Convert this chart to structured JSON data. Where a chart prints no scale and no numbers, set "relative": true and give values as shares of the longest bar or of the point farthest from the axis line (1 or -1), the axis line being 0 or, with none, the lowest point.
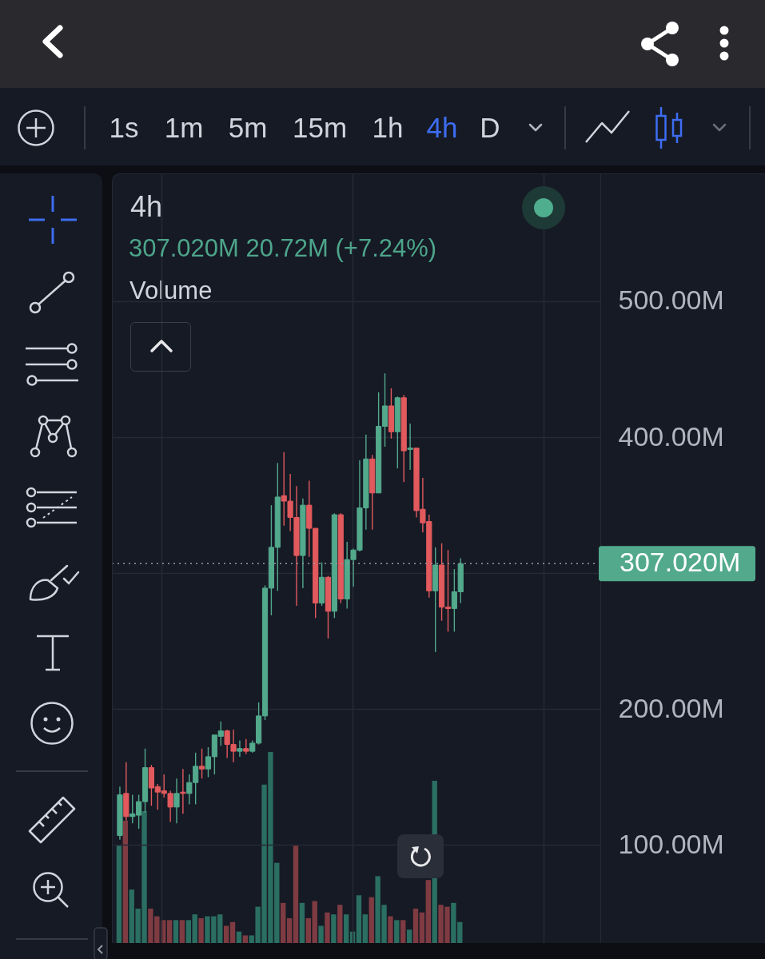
{
  "chart_data": [
    {
      "type": "candlestick",
      "title": "4h",
      "subtitle": "307.020M 20.72M (+7.24%)",
      "categories": [
        null,
        null,
        null,
        null,
        null,
        null,
        null,
        null,
        null,
        null,
        null,
        null,
        null,
        null,
        null,
        null,
        null,
        null,
        null,
        null,
        null,
        null,
        null,
        null,
        null,
        null,
        null,
        null,
        null,
        null,
        null,
        null,
        null,
        null,
        null,
        null,
        null,
        null,
        null,
        null,
        null,
        null,
        null,
        null,
        null,
        null,
        null,
        null,
        null,
        null,
        null,
        null,
        null,
        null,
        null,
        null,
        null,
        null,
        null,
        null,
        null,
        null,
        null,
        null,
        null,
        null,
        null,
        null,
        null,
        null,
        null,
        null,
        null,
        null,
        null,
        null
      ],
      "ohlc": [
        [
          107,
          143,
          104,
          137
        ],
        [
          138,
          161,
          118,
          121
        ],
        [
          121,
          137,
          116,
          123
        ],
        [
          122,
          137,
          112,
          132
        ],
        [
          132,
          171,
          124,
          157
        ],
        [
          157,
          159,
          129,
          142
        ],
        [
          143,
          145,
          126,
          139
        ],
        [
          140,
          152,
          135,
          138
        ],
        [
          138,
          140,
          117,
          128
        ],
        [
          128,
          149,
          116,
          138
        ],
        [
          139,
          156,
          123,
          138
        ],
        [
          138,
          152,
          130,
          146
        ],
        [
          146,
          168,
          130,
          158
        ],
        [
          158,
          171,
          149,
          156
        ],
        [
          156,
          172,
          150,
          165
        ],
        [
          165,
          181,
          152,
          181
        ],
        [
          180,
          191,
          173,
          184
        ],
        [
          184,
          185,
          164,
          174
        ],
        [
          174,
          185,
          161,
          169
        ],
        [
          169,
          177,
          165,
          171
        ],
        [
          171,
          178,
          167,
          169
        ],
        [
          169,
          177,
          168,
          175
        ],
        [
          175,
          205,
          174,
          195
        ],
        [
          195,
          291,
          192,
          289
        ],
        [
          289,
          350,
          269,
          319
        ],
        [
          319,
          381,
          287,
          356
        ],
        [
          357,
          389,
          335,
          353
        ],
        [
          353,
          373,
          331,
          341
        ],
        [
          341,
          364,
          276,
          313
        ],
        [
          313,
          355,
          289,
          350
        ],
        [
          350,
          368,
          312,
          333
        ],
        [
          333,
          333,
          267,
          278
        ],
        [
          278,
          308,
          276,
          297
        ],
        [
          297,
          298,
          252,
          272
        ],
        [
          272,
          344,
          267,
          343
        ],
        [
          343,
          344,
          278,
          281
        ],
        [
          281,
          323,
          274,
          310
        ],
        [
          310,
          318,
          290,
          317
        ],
        [
          317,
          383,
          316,
          348
        ],
        [
          348,
          402,
          332,
          384
        ],
        [
          384,
          387,
          332,
          359
        ],
        [
          359,
          433,
          359,
          408
        ],
        [
          408,
          447,
          393,
          423
        ],
        [
          423,
          436,
          399,
          404
        ],
        [
          404,
          430,
          377,
          429
        ],
        [
          429,
          431,
          367,
          390
        ],
        [
          391,
          410,
          376,
          392
        ],
        [
          392,
          392,
          341,
          346
        ],
        [
          347,
          370,
          330,
          337
        ],
        [
          338,
          343,
          282,
          287
        ],
        [
          287,
          319,
          242,
          306
        ],
        [
          306,
          322,
          265,
          275
        ],
        [
          275,
          317,
          257,
          274
        ],
        [
          274,
          303,
          257,
          286.3
        ],
        [
          286.3,
          311,
          278,
          307.02
        ],
        null,
        null,
        null,
        null,
        null,
        null,
        null,
        null,
        null,
        null,
        null,
        null,
        null,
        null,
        null,
        null,
        null,
        null,
        null,
        null,
        null
      ],
      "colors": [
        "#52a98c",
        "#e25a5d",
        "#52a98c",
        "#52a98c",
        "#52a98c",
        "#e25a5d",
        "#e25a5d",
        "#e25a5d",
        "#e25a5d",
        "#52a98c",
        "#e25a5d",
        "#52a98c",
        "#52a98c",
        "#e25a5d",
        "#52a98c",
        "#52a98c",
        "#52a98c",
        "#e25a5d",
        "#e25a5d",
        "#52a98c",
        "#e25a5d",
        "#52a98c",
        "#52a98c",
        "#52a98c",
        "#52a98c",
        "#52a98c",
        "#e25a5d",
        "#e25a5d",
        "#e25a5d",
        "#52a98c",
        "#e25a5d",
        "#e25a5d",
        "#52a98c",
        "#e25a5d",
        "#52a98c",
        "#e25a5d",
        "#52a98c",
        "#52a98c",
        "#52a98c",
        "#52a98c",
        "#e25a5d",
        "#52a98c",
        "#52a98c",
        "#e25a5d",
        "#52a98c",
        "#e25a5d",
        "#52a98c",
        "#e25a5d",
        "#e25a5d",
        "#e25a5d",
        "#52a98c",
        "#e25a5d",
        "#e25a5d",
        "#52a98c",
        "#52a98c",
        null,
        null,
        null,
        null,
        null,
        null,
        null,
        null,
        null,
        null,
        null,
        null,
        null,
        null,
        null,
        null,
        null,
        null,
        null,
        null,
        null
      ],
      "ylim": [
        28,
        594
      ],
      "yticks": [
        {
          "value": 100,
          "label": "100.00M"
        },
        {
          "value": 200,
          "label": "200.00M"
        },
        {
          "value": 300,
          "label": null
        },
        {
          "value": 400,
          "label": "400.00M"
        },
        {
          "value": 500,
          "label": "500.00M"
        }
      ],
      "grid": true,
      "tick_labels": "y",
      "ref_lines": [
        {
          "axis": "y",
          "value": 307.02,
          "label": "307.020M",
          "color": "#9598a1",
          "line_style": "dotted"
        }
      ],
      "annotations": [
        "1s",
        "1m",
        "5m",
        "15m",
        "1h",
        "4h",
        "D"
      ]
    },
    {
      "type": "bar",
      "title": "Volume",
      "relative": true,
      "categories": [
        null,
        null,
        null,
        null,
        null,
        null,
        null,
        null,
        null,
        null,
        null,
        null,
        null,
        null,
        null,
        null,
        null,
        null,
        null,
        null,
        null,
        null,
        null,
        null,
        null,
        null,
        null,
        null,
        null,
        null,
        null,
        null,
        null,
        null,
        null,
        null,
        null,
        null,
        null,
        null,
        null,
        null,
        null,
        null,
        null,
        null,
        null,
        null,
        null,
        null,
        null,
        null,
        null,
        null,
        null,
        null,
        null,
        null,
        null,
        null,
        null,
        null,
        null,
        null,
        null,
        null,
        null,
        null,
        null,
        null,
        null,
        null,
        null,
        null,
        null,
        null
      ],
      "values": [
        0.51,
        0.64,
        0.28,
        0.18,
        0.69,
        0.18,
        0.14,
        0.12,
        0.12,
        0.12,
        0.12,
        0.12,
        0.15,
        0.13,
        0.14,
        0.14,
        0.15,
        0.09,
        0.11,
        0.06,
        0.04,
        0.04,
        0.19,
        0.83,
        1,
        0.42,
        0.21,
        0.13,
        0.51,
        0.21,
        0.13,
        0.22,
        0.09,
        0.16,
        0.15,
        0.2,
        0.15,
        0.06,
        0.25,
        0.15,
        0.24,
        0.35,
        0.2,
        0.14,
        0.12,
        0.12,
        0.07,
        0.18,
        0.16,
        0.33,
        0.85,
        0.2,
        0.19,
        0.21,
        0.11,
        null,
        null,
        null,
        null,
        null,
        null,
        null,
        null,
        null,
        null,
        null,
        null,
        null,
        null,
        null,
        null,
        null,
        null,
        null,
        null,
        null
      ],
      "colors": [
        "#2b6e62",
        "#7f3b42",
        "#2b6e62",
        "#2b6e62",
        "#2b6e62",
        "#7f3b42",
        "#7f3b42",
        "#7f3b42",
        "#7f3b42",
        "#2b6e62",
        "#7f3b42",
        "#2b6e62",
        "#2b6e62",
        "#7f3b42",
        "#2b6e62",
        "#2b6e62",
        "#2b6e62",
        "#7f3b42",
        "#7f3b42",
        "#2b6e62",
        "#7f3b42",
        "#2b6e62",
        "#2b6e62",
        "#2b6e62",
        "#2b6e62",
        "#2b6e62",
        "#7f3b42",
        "#7f3b42",
        "#7f3b42",
        "#2b6e62",
        "#7f3b42",
        "#7f3b42",
        "#2b6e62",
        "#7f3b42",
        "#2b6e62",
        "#7f3b42",
        "#2b6e62",
        "#2b6e62",
        "#2b6e62",
        "#2b6e62",
        "#7f3b42",
        "#2b6e62",
        "#2b6e62",
        "#7f3b42",
        "#2b6e62",
        "#7f3b42",
        "#2b6e62",
        "#7f3b42",
        "#7f3b42",
        "#7f3b42",
        "#2b6e62",
        "#7f3b42",
        "#7f3b42",
        "#2b6e62",
        "#2b6e62",
        null,
        null,
        null,
        null,
        null,
        null,
        null,
        null,
        null,
        null,
        null,
        null,
        null,
        null,
        null,
        null,
        null,
        null,
        null,
        null,
        null
      ]
    }
  ]
}
